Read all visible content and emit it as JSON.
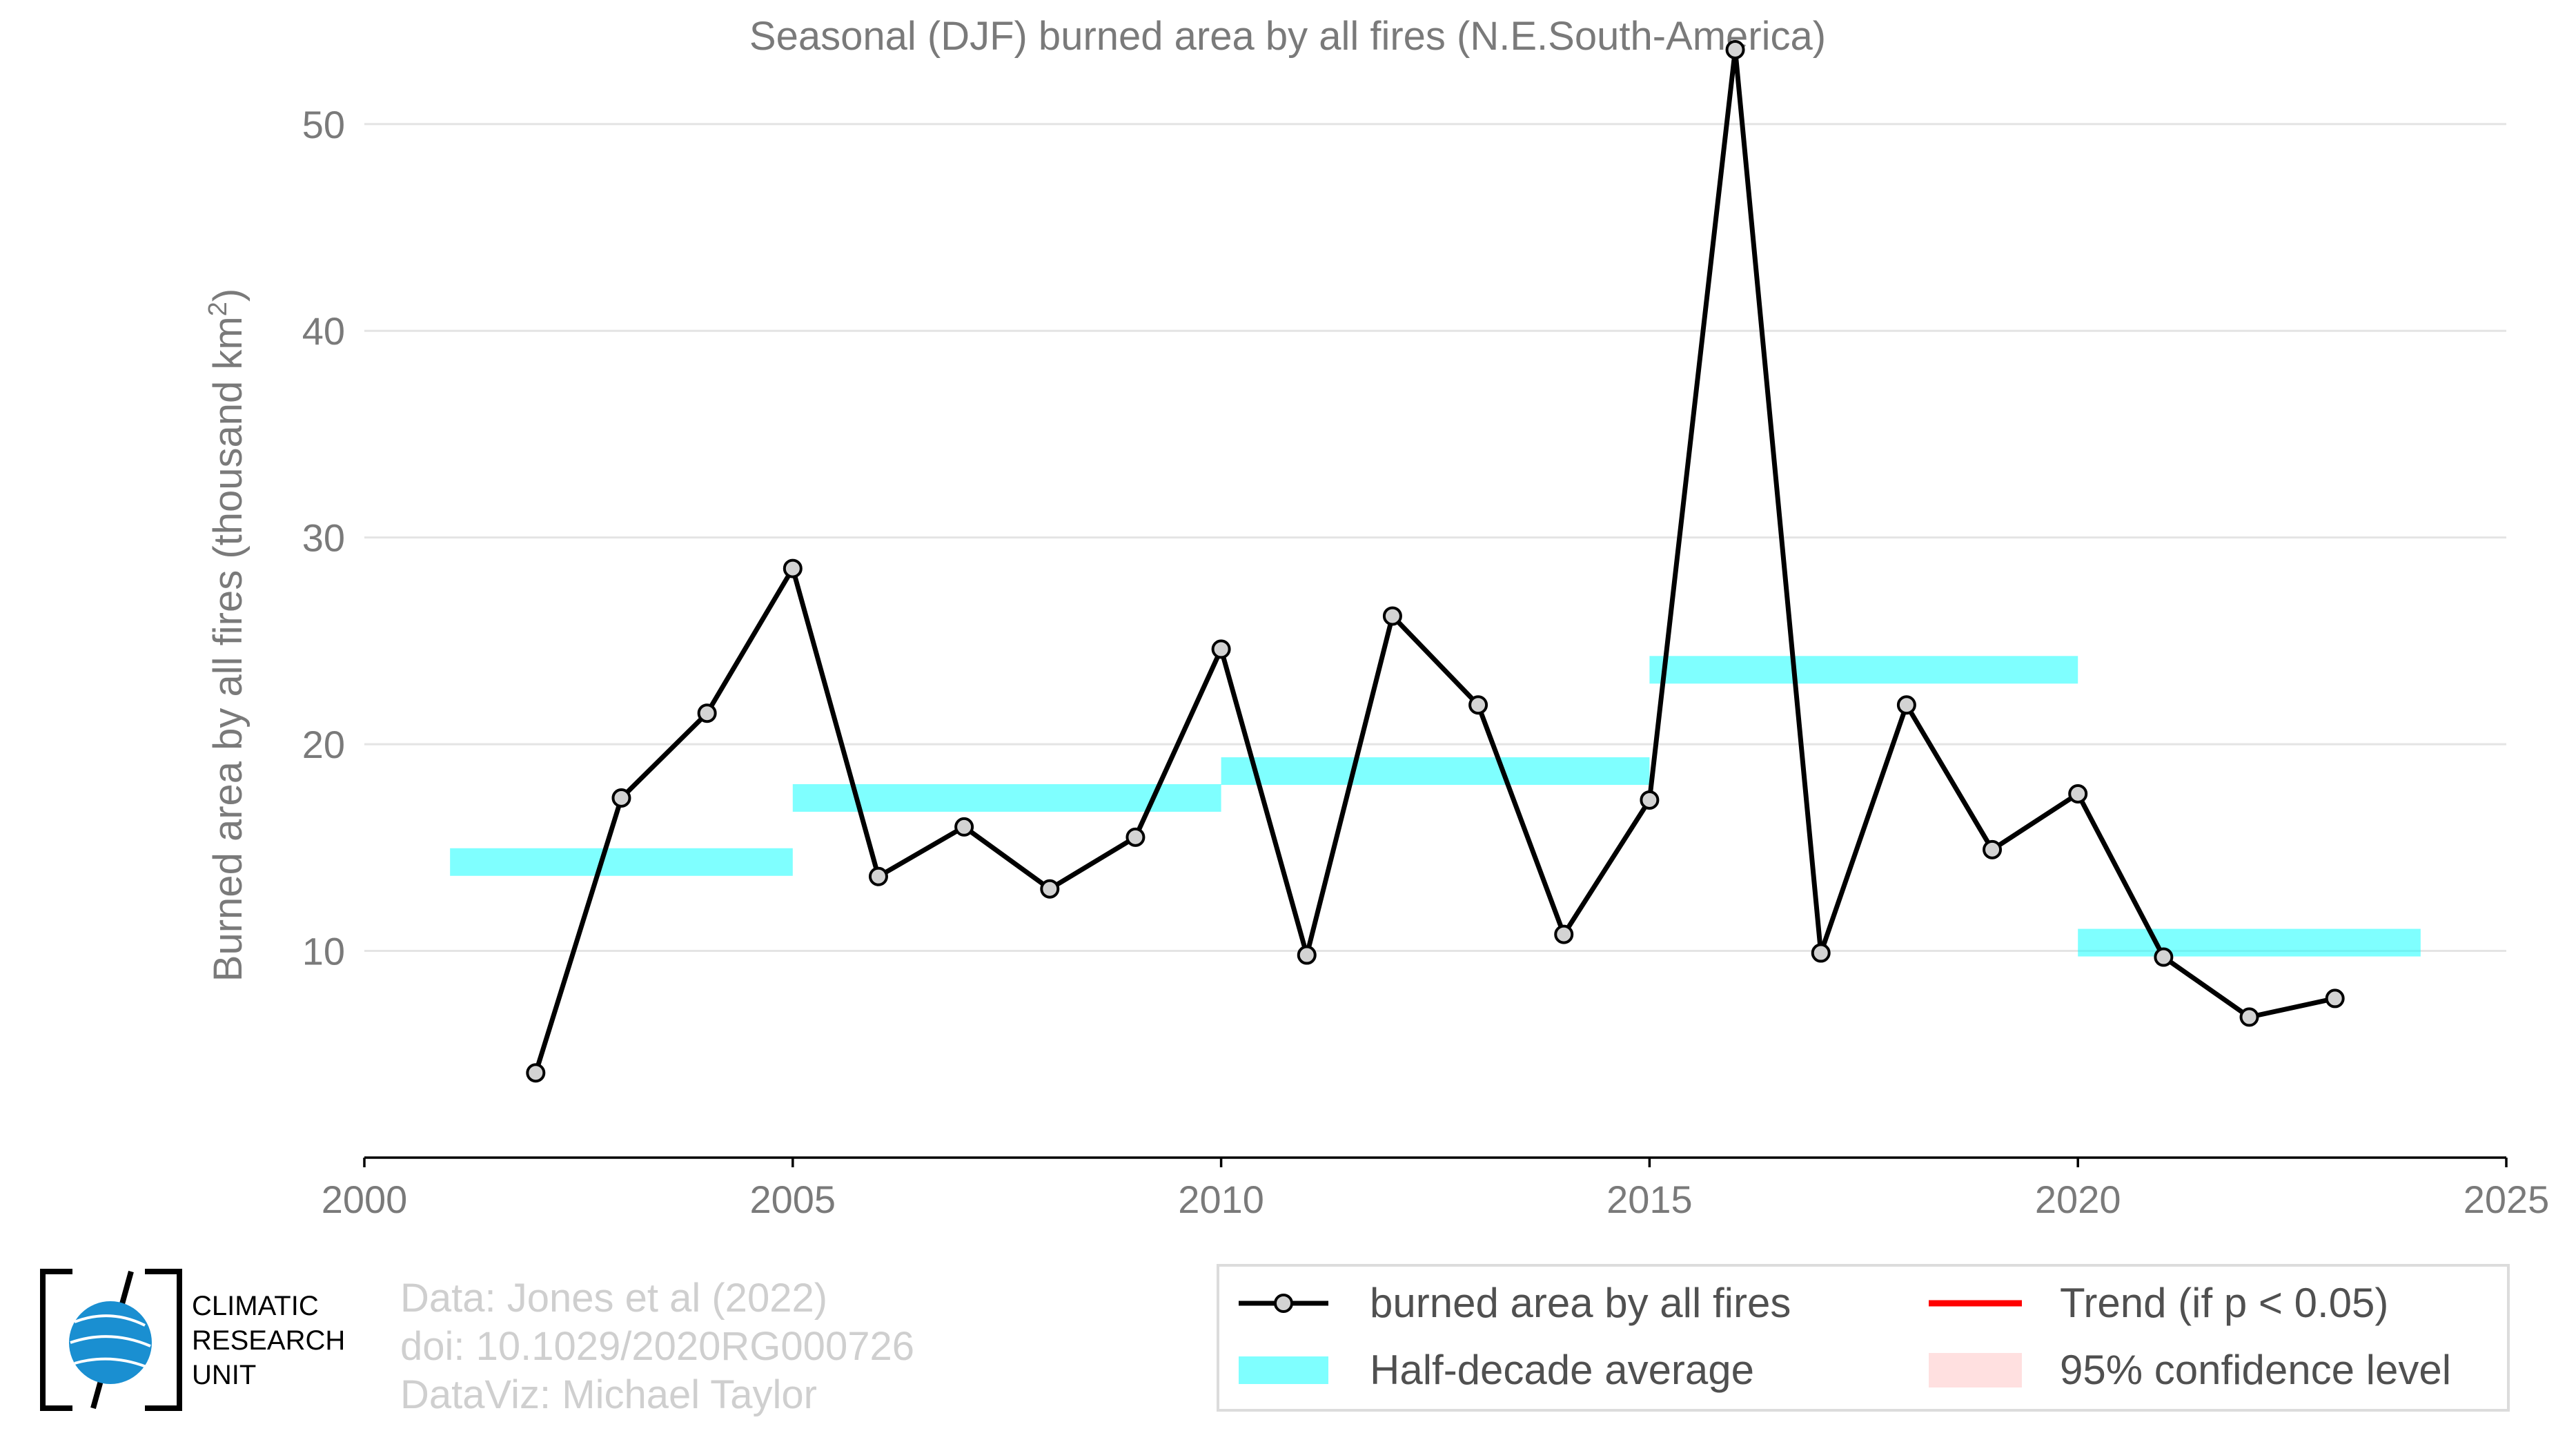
{
  "chart_data": {
    "type": "line",
    "title": "Seasonal (DJF) burned area by all fires (N.E.South-America)",
    "ylabel_prefix": "Burned area by all fires (thousand km",
    "ylabel_sup": "2",
    "ylabel_suffix": ")",
    "xlim": [
      2000,
      2025
    ],
    "ylim": [
      0,
      54
    ],
    "xticks": [
      2000,
      2005,
      2010,
      2015,
      2020,
      2025
    ],
    "yticks": [
      10,
      20,
      30,
      40,
      50
    ],
    "grid": true,
    "series": [
      {
        "name": "burned area by all fires",
        "color": "#000000",
        "marker_fill": "#d3d3d3",
        "x": [
          2002,
          2003,
          2004,
          2005,
          2006,
          2007,
          2008,
          2009,
          2010,
          2011,
          2012,
          2013,
          2014,
          2015,
          2016,
          2017,
          2018,
          2019,
          2020,
          2021,
          2022,
          2023
        ],
        "y": [
          4.1,
          17.4,
          21.5,
          28.5,
          13.6,
          16.0,
          13.0,
          15.5,
          24.6,
          9.8,
          26.2,
          21.9,
          10.8,
          17.3,
          53.6,
          9.9,
          21.9,
          14.9,
          17.6,
          9.7,
          6.8,
          7.7
        ]
      }
    ],
    "half_decade_average": {
      "name": "Half-decade average",
      "color": "#00ffff",
      "segments": [
        {
          "x0": 2001,
          "x1": 2005,
          "y": 14.3
        },
        {
          "x0": 2005,
          "x1": 2010,
          "y": 17.4
        },
        {
          "x0": 2010,
          "x1": 2015,
          "y": 18.7
        },
        {
          "x0": 2015,
          "x1": 2020,
          "y": 23.6
        },
        {
          "x0": 2020,
          "x1": 2024,
          "y": 10.4
        }
      ]
    },
    "legend": {
      "placement": "bottom-right",
      "items": [
        {
          "label": "burned area by all fires",
          "kind": "line-marker",
          "color": "#000000"
        },
        {
          "label": "Trend (if p < 0.05)",
          "kind": "line",
          "color": "#ff0000"
        },
        {
          "label": "Half-decade average",
          "kind": "band",
          "color": "#00ffff"
        },
        {
          "label": "95% confidence level",
          "kind": "patch",
          "color": "#ffcccc"
        }
      ]
    }
  },
  "credits": {
    "line1": "Data: Jones et al (2022)",
    "line2": "doi: 10.1029/2020RG000726",
    "line3": "DataViz: Michael Taylor"
  },
  "logo": {
    "line1": "CLIMATIC",
    "line2": "RESEARCH",
    "line3": "UNIT"
  }
}
